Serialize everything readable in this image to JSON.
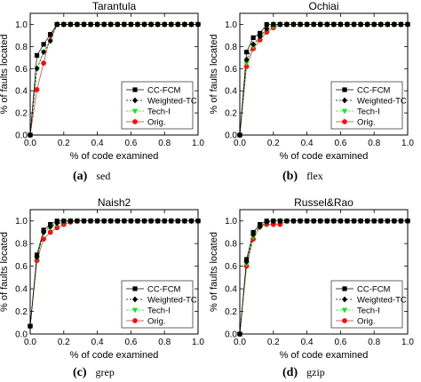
{
  "colors": {
    "ccfcm": "#000000",
    "weighted": "#000000",
    "tech": "#22dd22",
    "orig": "#ee1111",
    "orig_line": "#cc3333"
  },
  "markers": {
    "ccfcm": "square",
    "weighted": "diamond",
    "tech": "triangle-down",
    "orig": "circle"
  },
  "chart_data": [
    {
      "type": "line",
      "title": "Tarantula",
      "xlabel": "% of code examined",
      "ylabel": "% of faults located",
      "xlim": [
        0,
        1.0
      ],
      "ylim": [
        0,
        1.1
      ],
      "xticks": [
        "0.0",
        "0.2",
        "0.4",
        "0.6",
        "0.8",
        "1.0"
      ],
      "yticks": [
        "0.0",
        "0.2",
        "0.4",
        "0.6",
        "0.8",
        "1.0"
      ],
      "legend_position": "bottom-right",
      "caption_letter": "(a)",
      "caption_program": "sed",
      "series": [
        {
          "name": "CC-FCM",
          "x": [
            0,
            0.04,
            0.08,
            0.12,
            0.16,
            0.2,
            0.24,
            0.28,
            0.32,
            0.36,
            0.4,
            0.44,
            0.48,
            0.52,
            0.56,
            0.6,
            0.64,
            0.68,
            0.72,
            0.76,
            0.8,
            0.84,
            0.88,
            0.92,
            0.96,
            1.0
          ],
          "y": [
            0,
            0.72,
            0.82,
            0.91,
            1.0,
            1.0,
            1.0,
            1.0,
            1.0,
            1.0,
            1.0,
            1.0,
            1.0,
            1.0,
            1.0,
            1.0,
            1.0,
            1.0,
            1.0,
            1.0,
            1.0,
            1.0,
            1.0,
            1.0,
            1.0,
            1.0
          ]
        },
        {
          "name": "Weighted-TC",
          "x": [
            0,
            0.04,
            0.08,
            0.12,
            0.16,
            0.2,
            0.24,
            0.28,
            0.32,
            0.36,
            0.4,
            0.44,
            0.48,
            0.52,
            0.56,
            0.6,
            0.64,
            0.68,
            0.72,
            0.76,
            0.8,
            0.84,
            0.88,
            0.92,
            0.96,
            1.0
          ],
          "y": [
            0,
            0.6,
            0.75,
            0.85,
            1.0,
            1.0,
            1.0,
            1.0,
            1.0,
            1.0,
            1.0,
            1.0,
            1.0,
            1.0,
            1.0,
            1.0,
            1.0,
            1.0,
            1.0,
            1.0,
            1.0,
            1.0,
            1.0,
            1.0,
            1.0,
            1.0
          ]
        },
        {
          "name": "Tech-I",
          "x": [
            0,
            0.04,
            0.08,
            0.12,
            0.16,
            0.2,
            0.24,
            0.28,
            0.32,
            0.36,
            0.4,
            0.44,
            0.48,
            0.52,
            0.56,
            0.6,
            0.64,
            0.68,
            0.72,
            0.76,
            0.8,
            0.84,
            0.88,
            0.92,
            0.96,
            1.0
          ],
          "y": [
            0,
            0.6,
            0.75,
            0.85,
            1.0,
            1.0,
            1.0,
            1.0,
            1.0,
            1.0,
            1.0,
            1.0,
            1.0,
            1.0,
            1.0,
            1.0,
            1.0,
            1.0,
            1.0,
            1.0,
            1.0,
            1.0,
            1.0,
            1.0,
            1.0,
            1.0
          ]
        },
        {
          "name": "Orig.",
          "x": [
            0,
            0.04,
            0.08,
            0.12,
            0.16,
            0.2,
            0.24,
            0.28,
            0.32,
            0.36,
            0.4,
            0.44,
            0.48,
            0.52,
            0.56,
            0.6,
            0.64,
            0.68,
            0.72,
            0.76,
            0.8,
            0.84,
            0.88,
            0.92,
            0.96,
            1.0
          ],
          "y": [
            0,
            0.41,
            0.65,
            0.9,
            1.0,
            1.0,
            1.0,
            1.0,
            1.0,
            1.0,
            1.0,
            1.0,
            1.0,
            1.0,
            1.0,
            1.0,
            1.0,
            1.0,
            1.0,
            1.0,
            1.0,
            1.0,
            1.0,
            1.0,
            1.0,
            1.0
          ]
        }
      ]
    },
    {
      "type": "line",
      "title": "Ochiai",
      "xlabel": "% of code examined",
      "ylabel": "% of faults located",
      "xlim": [
        0,
        1.0
      ],
      "ylim": [
        0,
        1.1
      ],
      "xticks": [
        "0.0",
        "0.2",
        "0.4",
        "0.6",
        "0.8",
        "1.0"
      ],
      "yticks": [
        "0.0",
        "0.2",
        "0.4",
        "0.6",
        "0.8",
        "1.0"
      ],
      "legend_position": "bottom-right",
      "caption_letter": "(b)",
      "caption_program": "flex",
      "series": [
        {
          "name": "CC-FCM",
          "x": [
            0,
            0.04,
            0.08,
            0.12,
            0.16,
            0.2,
            0.24,
            0.28,
            0.32,
            0.36,
            0.4,
            0.44,
            0.48,
            0.52,
            0.56,
            0.6,
            0.64,
            0.68,
            0.72,
            0.76,
            0.8,
            0.84,
            0.88,
            0.92,
            0.96,
            1.0
          ],
          "y": [
            0,
            0.75,
            0.88,
            0.92,
            1.0,
            1.0,
            1.0,
            1.0,
            1.0,
            1.0,
            1.0,
            1.0,
            1.0,
            1.0,
            1.0,
            1.0,
            1.0,
            1.0,
            1.0,
            1.0,
            1.0,
            1.0,
            1.0,
            1.0,
            1.0,
            1.0
          ]
        },
        {
          "name": "Weighted-TC",
          "x": [
            0,
            0.04,
            0.08,
            0.12,
            0.16,
            0.2,
            0.24,
            0.28,
            0.32,
            0.36,
            0.4,
            0.44,
            0.48,
            0.52,
            0.56,
            0.6,
            0.64,
            0.68,
            0.72,
            0.76,
            0.8,
            0.84,
            0.88,
            0.92,
            0.96,
            1.0
          ],
          "y": [
            0,
            0.68,
            0.82,
            0.89,
            0.96,
            1.0,
            1.0,
            1.0,
            1.0,
            1.0,
            1.0,
            1.0,
            1.0,
            1.0,
            1.0,
            1.0,
            1.0,
            1.0,
            1.0,
            1.0,
            1.0,
            1.0,
            1.0,
            1.0,
            1.0,
            1.0
          ]
        },
        {
          "name": "Tech-I",
          "x": [
            0,
            0.04,
            0.08,
            0.12,
            0.16,
            0.2,
            0.24,
            0.28,
            0.32,
            0.36,
            0.4,
            0.44,
            0.48,
            0.52,
            0.56,
            0.6,
            0.64,
            0.68,
            0.72,
            0.76,
            0.8,
            0.84,
            0.88,
            0.92,
            0.96,
            1.0
          ],
          "y": [
            0,
            0.65,
            0.8,
            0.88,
            0.95,
            0.98,
            1.0,
            1.0,
            1.0,
            1.0,
            1.0,
            1.0,
            1.0,
            1.0,
            1.0,
            1.0,
            1.0,
            1.0,
            1.0,
            1.0,
            1.0,
            1.0,
            1.0,
            1.0,
            1.0,
            1.0
          ]
        },
        {
          "name": "Orig.",
          "x": [
            0,
            0.04,
            0.08,
            0.12,
            0.16,
            0.2,
            0.24,
            0.28,
            0.32,
            0.36,
            0.4,
            0.44,
            0.48,
            0.52,
            0.56,
            0.6,
            0.64,
            0.68,
            0.72,
            0.76,
            0.8,
            0.84,
            0.88,
            0.92,
            0.96,
            1.0
          ],
          "y": [
            0,
            0.62,
            0.78,
            0.86,
            0.93,
            0.97,
            1.0,
            1.0,
            1.0,
            1.0,
            1.0,
            1.0,
            1.0,
            1.0,
            1.0,
            1.0,
            1.0,
            1.0,
            1.0,
            1.0,
            1.0,
            1.0,
            1.0,
            1.0,
            1.0,
            1.0
          ]
        }
      ]
    },
    {
      "type": "line",
      "title": "Naish2",
      "xlabel": "% of code examined",
      "ylabel": "% of faults located",
      "xlim": [
        0,
        1.0
      ],
      "ylim": [
        0,
        1.1
      ],
      "xticks": [
        "0.0",
        "0.2",
        "0.4",
        "0.6",
        "0.8",
        "1.0"
      ],
      "yticks": [
        "0.0",
        "0.2",
        "0.4",
        "0.6",
        "0.8",
        "1.0"
      ],
      "legend_position": "bottom-right",
      "caption_letter": "(c)",
      "caption_program": "grep",
      "series": [
        {
          "name": "CC-FCM",
          "x": [
            0,
            0.04,
            0.08,
            0.12,
            0.16,
            0.2,
            0.24,
            0.28,
            0.32,
            0.36,
            0.4,
            0.44,
            0.48,
            0.52,
            0.56,
            0.6,
            0.64,
            0.68,
            0.72,
            0.76,
            0.8,
            0.84,
            0.88,
            0.92,
            0.96,
            1.0
          ],
          "y": [
            0.07,
            0.7,
            0.92,
            0.97,
            1.0,
            1.0,
            1.0,
            1.0,
            1.0,
            1.0,
            1.0,
            1.0,
            1.0,
            1.0,
            1.0,
            1.0,
            1.0,
            1.0,
            1.0,
            1.0,
            1.0,
            1.0,
            1.0,
            1.0,
            1.0,
            1.0
          ]
        },
        {
          "name": "Weighted-TC",
          "x": [
            0,
            0.04,
            0.08,
            0.12,
            0.16,
            0.2,
            0.24,
            0.28,
            0.32,
            0.36,
            0.4,
            0.44,
            0.48,
            0.52,
            0.56,
            0.6,
            0.64,
            0.68,
            0.72,
            0.76,
            0.8,
            0.84,
            0.88,
            0.92,
            0.96,
            1.0
          ],
          "y": [
            0.07,
            0.68,
            0.9,
            0.95,
            0.98,
            1.0,
            1.0,
            1.0,
            1.0,
            1.0,
            1.0,
            1.0,
            1.0,
            1.0,
            1.0,
            1.0,
            1.0,
            1.0,
            1.0,
            1.0,
            1.0,
            1.0,
            1.0,
            1.0,
            1.0,
            1.0
          ]
        },
        {
          "name": "Tech-I",
          "x": [
            0,
            0.04,
            0.08,
            0.12,
            0.16,
            0.2,
            0.24,
            0.28,
            0.32,
            0.36,
            0.4,
            0.44,
            0.48,
            0.52,
            0.56,
            0.6,
            0.64,
            0.68,
            0.72,
            0.76,
            0.8,
            0.84,
            0.88,
            0.92,
            0.96,
            1.0
          ],
          "y": [
            0.07,
            0.67,
            0.89,
            0.94,
            0.97,
            0.99,
            1.0,
            1.0,
            1.0,
            1.0,
            1.0,
            1.0,
            1.0,
            1.0,
            1.0,
            1.0,
            1.0,
            1.0,
            1.0,
            1.0,
            1.0,
            1.0,
            1.0,
            1.0,
            1.0,
            1.0
          ]
        },
        {
          "name": "Orig.",
          "x": [
            0,
            0.04,
            0.08,
            0.12,
            0.16,
            0.2,
            0.24,
            0.28,
            0.32,
            0.36,
            0.4,
            0.44,
            0.48,
            0.52,
            0.56,
            0.6,
            0.64,
            0.68,
            0.72,
            0.76,
            0.8,
            0.84,
            0.88,
            0.92,
            0.96,
            1.0
          ],
          "y": [
            0.07,
            0.65,
            0.84,
            0.9,
            0.94,
            0.97,
            0.99,
            1.0,
            1.0,
            1.0,
            1.0,
            1.0,
            1.0,
            1.0,
            1.0,
            1.0,
            1.0,
            1.0,
            1.0,
            1.0,
            1.0,
            1.0,
            1.0,
            1.0,
            1.0,
            1.0
          ]
        }
      ]
    },
    {
      "type": "line",
      "title": "Russel&Rao",
      "xlabel": "% of code examined",
      "ylabel": "% of faults located",
      "xlim": [
        0,
        1.0
      ],
      "ylim": [
        0,
        1.1
      ],
      "xticks": [
        "0.0",
        "0.2",
        "0.4",
        "0.6",
        "0.8",
        "1.0"
      ],
      "yticks": [
        "0.0",
        "0.2",
        "0.4",
        "0.6",
        "0.8",
        "1.0"
      ],
      "legend_position": "bottom-right",
      "caption_letter": "(d)",
      "caption_program": "gzip",
      "series": [
        {
          "name": "CC-FCM",
          "x": [
            0,
            0.04,
            0.08,
            0.12,
            0.16,
            0.2,
            0.24,
            0.28,
            0.32,
            0.36,
            0.4,
            0.44,
            0.48,
            0.52,
            0.56,
            0.6,
            0.64,
            0.68,
            0.72,
            0.76,
            0.8,
            0.84,
            0.88,
            0.92,
            0.96,
            1.0
          ],
          "y": [
            0,
            0.66,
            0.9,
            0.97,
            1.0,
            1.0,
            1.0,
            1.0,
            1.0,
            1.0,
            1.0,
            1.0,
            1.0,
            1.0,
            1.0,
            1.0,
            1.0,
            1.0,
            1.0,
            1.0,
            1.0,
            1.0,
            1.0,
            1.0,
            1.0,
            1.0
          ]
        },
        {
          "name": "Weighted-TC",
          "x": [
            0,
            0.04,
            0.08,
            0.12,
            0.16,
            0.2,
            0.24,
            0.28,
            0.32,
            0.36,
            0.4,
            0.44,
            0.48,
            0.52,
            0.56,
            0.6,
            0.64,
            0.68,
            0.72,
            0.76,
            0.8,
            0.84,
            0.88,
            0.92,
            0.96,
            1.0
          ],
          "y": [
            0,
            0.64,
            0.88,
            0.95,
            0.99,
            1.0,
            1.0,
            1.0,
            1.0,
            1.0,
            1.0,
            1.0,
            1.0,
            1.0,
            1.0,
            1.0,
            1.0,
            1.0,
            1.0,
            1.0,
            1.0,
            1.0,
            1.0,
            1.0,
            1.0,
            1.0
          ]
        },
        {
          "name": "Tech-I",
          "x": [
            0,
            0.04,
            0.08,
            0.12,
            0.16,
            0.2,
            0.24,
            0.28,
            0.32,
            0.36,
            0.4,
            0.44,
            0.48,
            0.52,
            0.56,
            0.6,
            0.64,
            0.68,
            0.72,
            0.76,
            0.8,
            0.84,
            0.88,
            0.92,
            0.96,
            1.0
          ],
          "y": [
            0,
            0.62,
            0.86,
            0.94,
            0.98,
            1.0,
            1.0,
            1.0,
            1.0,
            1.0,
            1.0,
            1.0,
            1.0,
            1.0,
            1.0,
            1.0,
            1.0,
            1.0,
            1.0,
            1.0,
            1.0,
            1.0,
            1.0,
            1.0,
            1.0,
            1.0
          ]
        },
        {
          "name": "Orig.",
          "x": [
            0,
            0.04,
            0.08,
            0.12,
            0.16,
            0.2,
            0.24,
            0.28,
            0.32,
            0.36,
            0.4,
            0.44,
            0.48,
            0.52,
            0.56,
            0.6,
            0.64,
            0.68,
            0.72,
            0.76,
            0.8,
            0.84,
            0.88,
            0.92,
            0.96,
            1.0
          ],
          "y": [
            0,
            0.6,
            0.84,
            0.95,
            0.97,
            0.97,
            0.97,
            1.0,
            1.0,
            1.0,
            1.0,
            1.0,
            1.0,
            1.0,
            1.0,
            1.0,
            1.0,
            1.0,
            1.0,
            1.0,
            1.0,
            1.0,
            1.0,
            1.0,
            1.0,
            1.0
          ]
        }
      ]
    }
  ]
}
